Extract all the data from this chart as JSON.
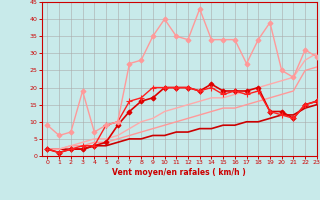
{
  "xlabel": "Vent moyen/en rafales ( km/h )",
  "xlim": [
    -0.5,
    23
  ],
  "ylim": [
    0,
    45
  ],
  "xticks": [
    0,
    1,
    2,
    3,
    4,
    5,
    6,
    7,
    8,
    9,
    10,
    11,
    12,
    13,
    14,
    15,
    16,
    17,
    18,
    19,
    20,
    21,
    22,
    23
  ],
  "yticks": [
    0,
    5,
    10,
    15,
    20,
    25,
    30,
    35,
    40,
    45
  ],
  "background_color": "#c8eaea",
  "grid_color": "#aaaaaa",
  "series": [
    {
      "x": [
        0,
        1,
        2,
        3,
        4,
        5,
        6,
        7,
        8,
        9,
        10,
        11,
        12,
        13,
        14,
        15,
        16,
        17,
        18,
        19,
        20,
        21,
        22,
        23
      ],
      "y": [
        2,
        2,
        2,
        2,
        3,
        3,
        4,
        5,
        5,
        6,
        6,
        7,
        7,
        8,
        8,
        9,
        9,
        10,
        10,
        11,
        12,
        12,
        14,
        15
      ],
      "color": "#cc0000",
      "linewidth": 1.2,
      "marker": null,
      "linestyle": "-"
    },
    {
      "x": [
        0,
        1,
        2,
        3,
        4,
        5,
        6,
        7,
        8,
        9,
        10,
        11,
        12,
        13,
        14,
        15,
        16,
        17,
        18,
        19,
        20,
        21,
        22,
        23
      ],
      "y": [
        2,
        2,
        3,
        3,
        4,
        4,
        5,
        6,
        7,
        8,
        9,
        10,
        11,
        12,
        13,
        14,
        14,
        15,
        16,
        17,
        18,
        19,
        25,
        26
      ],
      "color": "#ff9999",
      "linewidth": 1.0,
      "marker": null,
      "linestyle": "-"
    },
    {
      "x": [
        0,
        1,
        2,
        3,
        4,
        5,
        6,
        7,
        8,
        9,
        10,
        11,
        12,
        13,
        14,
        15,
        16,
        17,
        18,
        19,
        20,
        21,
        22,
        23
      ],
      "y": [
        2,
        2,
        3,
        4,
        5,
        5,
        6,
        8,
        10,
        11,
        13,
        14,
        15,
        16,
        17,
        17,
        18,
        19,
        20,
        21,
        22,
        23,
        28,
        30
      ],
      "color": "#ffaaaa",
      "linewidth": 1.0,
      "marker": null,
      "linestyle": "-"
    },
    {
      "x": [
        0,
        1,
        2,
        3,
        4,
        5,
        6,
        7,
        8,
        9,
        10,
        11,
        12,
        13,
        14,
        15,
        16,
        17,
        18,
        19,
        20,
        21,
        22,
        23
      ],
      "y": [
        2,
        1,
        2,
        2,
        3,
        4,
        9,
        13,
        16,
        17,
        20,
        20,
        20,
        19,
        21,
        19,
        19,
        19,
        20,
        13,
        13,
        11,
        15,
        16
      ],
      "color": "#dd0000",
      "linewidth": 1.2,
      "marker": "D",
      "markersize": 2.5,
      "linestyle": "-"
    },
    {
      "x": [
        0,
        1,
        2,
        3,
        4,
        5,
        6,
        7,
        8,
        9,
        10,
        11,
        12,
        13,
        14,
        15,
        16,
        17,
        18,
        19,
        20,
        21,
        22,
        23
      ],
      "y": [
        2,
        1,
        2,
        3,
        3,
        9,
        10,
        16,
        17,
        20,
        20,
        20,
        20,
        19,
        20,
        18,
        19,
        18,
        19,
        13,
        12,
        11,
        15,
        16
      ],
      "color": "#ff2020",
      "linewidth": 1.0,
      "marker": "+",
      "markersize": 4,
      "linestyle": "-"
    },
    {
      "x": [
        0,
        1,
        2,
        3,
        4,
        5,
        6,
        7,
        8,
        9,
        10,
        11,
        12,
        13,
        14,
        15,
        16,
        17,
        18,
        19,
        20,
        21,
        22,
        23
      ],
      "y": [
        9,
        6,
        7,
        19,
        7,
        9,
        10,
        27,
        28,
        35,
        40,
        35,
        34,
        43,
        34,
        34,
        34,
        27,
        34,
        39,
        25,
        23,
        31,
        29
      ],
      "color": "#ff9999",
      "linewidth": 1.0,
      "marker": "D",
      "markersize": 2.5,
      "linestyle": "-"
    }
  ]
}
